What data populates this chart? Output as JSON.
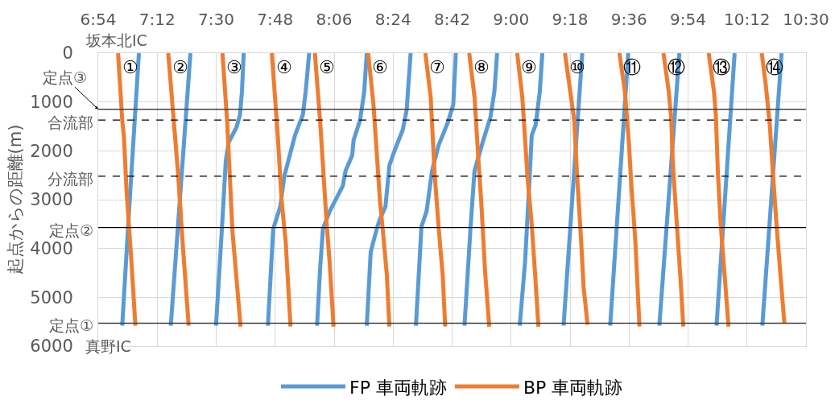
{
  "chart_data": {
    "type": "line",
    "ylabel": "起点からの距離(m)",
    "xlim": [
      6.9,
      10.5
    ],
    "xticks": [
      {
        "value": 6.9,
        "label": "6:54"
      },
      {
        "value": 7.2,
        "label": "7:12"
      },
      {
        "value": 7.5,
        "label": "7:30"
      },
      {
        "value": 7.8,
        "label": "7:48"
      },
      {
        "value": 8.1,
        "label": "8:06"
      },
      {
        "value": 8.4,
        "label": "8:24"
      },
      {
        "value": 8.7,
        "label": "8:42"
      },
      {
        "value": 9.0,
        "label": "9:00"
      },
      {
        "value": 9.3,
        "label": "9:18"
      },
      {
        "value": 9.6,
        "label": "9:36"
      },
      {
        "value": 9.9,
        "label": "9:54"
      },
      {
        "value": 10.2,
        "label": "10:12"
      },
      {
        "value": 10.5,
        "label": "10:30"
      }
    ],
    "ylim": [
      6000,
      0
    ],
    "yticks": [
      0,
      1000,
      2000,
      3000,
      4000,
      5000,
      6000
    ],
    "grid": true,
    "legend": "bottom",
    "line_style": "solid",
    "series": [
      {
        "name": "FP 車両軌跡",
        "color": "#5b9bd5",
        "x": [
          7.022,
          7.059,
          7.107
        ],
        "values": [
          5580,
          3080,
          0
        ]
      },
      {
        "color": "#5b9bd5",
        "x": [
          7.269,
          7.369
        ],
        "values": [
          5580,
          0
        ]
      },
      {
        "color": "#5b9bd5",
        "x": [
          7.499,
          7.529,
          7.549,
          7.563,
          7.603,
          7.621,
          7.631,
          7.64
        ],
        "values": [
          5580,
          3600,
          2200,
          1830,
          1520,
          1260,
          790,
          0
        ]
      },
      {
        "color": "#5b9bd5",
        "x": [
          7.763,
          7.79,
          7.826,
          7.847,
          7.881,
          7.901,
          7.941,
          7.955,
          7.973
        ],
        "values": [
          5580,
          3600,
          3140,
          2510,
          1990,
          1680,
          1260,
          790,
          0
        ]
      },
      {
        "color": "#5b9bd5",
        "x": [
          8.013,
          8.029,
          8.043,
          8.077,
          8.104,
          8.144,
          8.158,
          8.192,
          8.199,
          8.232,
          8.253,
          8.266
        ],
        "values": [
          5580,
          4390,
          3600,
          3240,
          3030,
          2720,
          2410,
          2090,
          1780,
          1370,
          790,
          0
        ]
      },
      {
        "color": "#5b9bd5",
        "x": [
          8.266,
          8.286,
          8.32,
          8.333,
          8.361,
          8.381,
          8.408,
          8.449,
          8.469,
          8.489
        ],
        "values": [
          5580,
          4070,
          3550,
          3400,
          3140,
          2300,
          1990,
          1570,
          1160,
          0
        ]
      },
      {
        "color": "#5b9bd5",
        "x": [
          8.516,
          8.544,
          8.57,
          8.598,
          8.631,
          8.678,
          8.706,
          8.719
        ],
        "values": [
          5580,
          3550,
          3240,
          2410,
          1890,
          1420,
          1050,
          0
        ]
      },
      {
        "color": "#5b9bd5",
        "x": [
          8.763,
          8.794,
          8.814,
          8.855,
          8.895,
          8.915,
          8.929
        ],
        "values": [
          5580,
          3550,
          2410,
          1830,
          1310,
          790,
          0
        ]
      },
      {
        "color": "#5b9bd5",
        "x": [
          9.044,
          9.071,
          9.092,
          9.105,
          9.125,
          9.146,
          9.159
        ],
        "values": [
          5580,
          4280,
          2720,
          1680,
          1470,
          790,
          0
        ]
      },
      {
        "color": "#5b9bd5",
        "x": [
          9.267,
          9.362
        ],
        "values": [
          5580,
          0
        ]
      },
      {
        "color": "#5b9bd5",
        "x": [
          9.504,
          9.596
        ],
        "values": [
          5580,
          0
        ]
      },
      {
        "color": "#5b9bd5",
        "x": [
          9.754,
          9.856
        ],
        "values": [
          5580,
          0
        ]
      },
      {
        "color": "#5b9bd5",
        "x": [
          10.045,
          10.137
        ],
        "values": [
          5580,
          0
        ]
      },
      {
        "color": "#5b9bd5",
        "x": [
          10.278,
          10.376
        ],
        "values": [
          5580,
          0
        ]
      },
      {
        "name": "BP 車両軌跡",
        "color": "#ed7d31",
        "x": [
          7.001,
          7.022,
          7.031,
          7.044,
          7.069,
          7.089
        ],
        "values": [
          0,
          1370,
          1730,
          2820,
          4280,
          5580
        ]
      },
      {
        "color": "#ed7d31",
        "x": [
          7.256,
          7.306,
          7.33,
          7.36
        ],
        "values": [
          0,
          2460,
          3920,
          5580
        ]
      },
      {
        "color": "#ed7d31",
        "x": [
          7.532,
          7.556,
          7.583,
          7.624
        ],
        "values": [
          0,
          1420,
          3660,
          5600
        ]
      },
      {
        "color": "#ed7d31",
        "x": [
          7.783,
          7.813,
          7.833,
          7.854,
          7.878
        ],
        "values": [
          0,
          1680,
          3030,
          3890,
          5600
        ]
      },
      {
        "color": "#ed7d31",
        "x": [
          8.002,
          8.029,
          8.063,
          8.077,
          8.097
        ],
        "values": [
          0,
          1420,
          3550,
          4280,
          5600
        ]
      },
      {
        "color": "#ed7d31",
        "x": [
          8.273,
          8.3,
          8.333,
          8.347,
          8.368,
          8.381
        ],
        "values": [
          0,
          1050,
          3030,
          3600,
          4540,
          5600
        ]
      },
      {
        "color": "#ed7d31",
        "x": [
          8.564,
          8.591,
          8.611,
          8.632,
          8.652,
          8.665
        ],
        "values": [
          0,
          900,
          2460,
          3600,
          4540,
          5600
        ]
      },
      {
        "color": "#ed7d31",
        "x": [
          8.787,
          8.814,
          8.834,
          8.848,
          8.868,
          8.889
        ],
        "values": [
          0,
          900,
          2200,
          3030,
          4490,
          5600
        ]
      },
      {
        "color": "#ed7d31",
        "x": [
          9.031,
          9.057,
          9.085,
          9.105,
          9.125,
          9.139
        ],
        "values": [
          0,
          900,
          2620,
          3500,
          4700,
          5600
        ]
      },
      {
        "color": "#ed7d31",
        "x": [
          9.274,
          9.301,
          9.321,
          9.335,
          9.355,
          9.369,
          9.389
        ],
        "values": [
          0,
          790,
          1370,
          2460,
          3760,
          4800,
          5560
        ]
      },
      {
        "color": "#ed7d31",
        "x": [
          9.551,
          9.579,
          9.599,
          9.612,
          9.626,
          9.633,
          9.653
        ],
        "values": [
          0,
          790,
          1830,
          2720,
          3500,
          3920,
          5600
        ]
      },
      {
        "color": "#ed7d31",
        "x": [
          9.775,
          9.802,
          9.815,
          9.822,
          9.843,
          9.863,
          9.876
        ],
        "values": [
          0,
          790,
          1370,
          2200,
          3500,
          4700,
          5600
        ]
      },
      {
        "color": "#ed7d31",
        "x": [
          10.005,
          10.032,
          10.042,
          10.052,
          10.066,
          10.086,
          10.106
        ],
        "values": [
          0,
          790,
          1310,
          2460,
          3500,
          4540,
          5600
        ]
      },
      {
        "color": "#ed7d31",
        "x": [
          10.275,
          10.295,
          10.316,
          10.329,
          10.35,
          10.37,
          10.39
        ],
        "values": [
          0,
          640,
          1470,
          2300,
          3500,
          4540,
          5530
        ]
      }
    ],
    "ref_lines": [
      {
        "axis": "y",
        "value": 1150,
        "label": "定点③",
        "color": "#404040"
      },
      {
        "axis": "y",
        "value": 1370,
        "label": "合流部",
        "color": "#000000",
        "line_style": "dashed"
      },
      {
        "axis": "y",
        "value": 2520,
        "label": "分流部",
        "color": "#000000",
        "line_style": "dashed"
      },
      {
        "axis": "y",
        "value": 3570,
        "label": "定点②",
        "color": "#000000"
      },
      {
        "axis": "y",
        "value": 5530,
        "label": "定点①",
        "color": "#404040"
      }
    ],
    "annotations": [
      "坂本北IC",
      "真野IC",
      {
        "text": "①",
        "x": 7.001,
        "y": 0
      },
      {
        "text": "②",
        "x": 7.256,
        "y": 0
      },
      {
        "text": "③",
        "x": 7.532,
        "y": 0
      },
      {
        "text": "④",
        "x": 7.783,
        "y": 0
      },
      {
        "text": "⑤",
        "x": 8.002,
        "y": 0
      },
      {
        "text": "⑥",
        "x": 8.273,
        "y": 0
      },
      {
        "text": "⑦",
        "x": 8.564,
        "y": 0
      },
      {
        "text": "⑧",
        "x": 8.787,
        "y": 0
      },
      {
        "text": "⑨",
        "x": 9.031,
        "y": 0
      },
      {
        "text": "⑩",
        "x": 9.274,
        "y": 0
      },
      {
        "text": "⑪",
        "x": 9.551,
        "y": 0
      },
      {
        "text": "⑫",
        "x": 9.775,
        "y": 0
      },
      {
        "text": "⑬",
        "x": 10.005,
        "y": 0
      },
      {
        "text": "⑭",
        "x": 10.275,
        "y": 0
      }
    ]
  }
}
